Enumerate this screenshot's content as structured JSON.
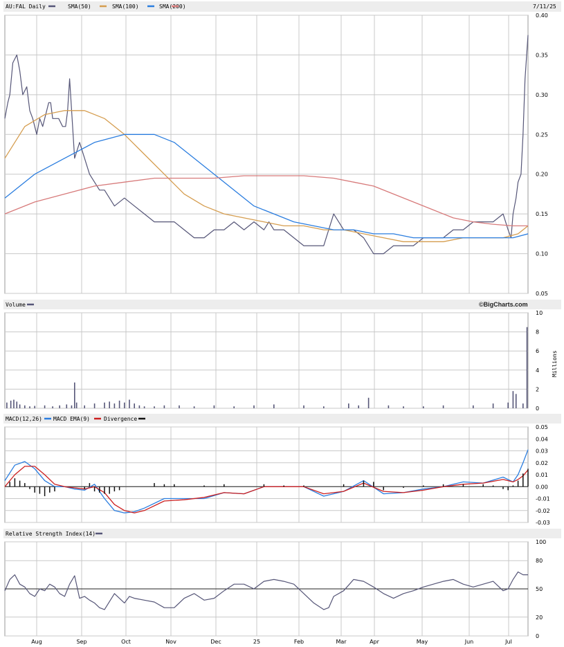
{
  "colors": {
    "price": "#555577",
    "sma50": "#d59d4f",
    "sma100": "#2a7ddf",
    "sma200": "#d77a7a",
    "macd": "#2a7ddf",
    "macd_ema": "#cc1f1f",
    "divergence": "#111111",
    "rsi": "#555577",
    "volume": "#555577",
    "grid": "#c8c8c8",
    "header_bg": "#ededed"
  },
  "chart_data": [
    {
      "type": "line",
      "title": "AU:FAL Daily",
      "date_label": "7/11/25",
      "watermark": "©BigCharts.com",
      "ylim": [
        0.05,
        0.4
      ],
      "y_ticks": [
        "0.40",
        "0.35",
        "0.30",
        "0.25",
        "0.20",
        "0.15",
        "0.10",
        "0.05"
      ],
      "x_tick_labels": [
        "Aug",
        "Sep",
        "Oct",
        "Nov",
        "Dec",
        "25",
        "Feb",
        "Mar",
        "Apr",
        "May",
        "Jun",
        "Jul"
      ],
      "legend": [
        {
          "label": "AU:FAL Daily",
          "color": "#555577"
        },
        {
          "label": "SMA(50)",
          "color": "#d59d4f"
        },
        {
          "label": "SMA(100)",
          "color": "#2a7ddf"
        },
        {
          "label": "SMA(200)",
          "color": "#d77a7a"
        }
      ],
      "series": [
        {
          "key": "price",
          "x": [
            0,
            3,
            5,
            8,
            12,
            15,
            18,
            22,
            25,
            28,
            32,
            35,
            38,
            40,
            42,
            44,
            46,
            48,
            51,
            54,
            58,
            61,
            63,
            65,
            70,
            75,
            80,
            85,
            90,
            95,
            100,
            110,
            120,
            130,
            140,
            150,
            160,
            170,
            180,
            190,
            200,
            210,
            220,
            230,
            240,
            250,
            260,
            265,
            270,
            280,
            290,
            300,
            310,
            320,
            330,
            340,
            350,
            360,
            370,
            380,
            390,
            400,
            405,
            410,
            420,
            430,
            440,
            450,
            460,
            470,
            480,
            490,
            500,
            505,
            508,
            510,
            513,
            515,
            518,
            520,
            522,
            525
          ],
          "values": [
            0.27,
            0.29,
            0.3,
            0.34,
            0.35,
            0.33,
            0.3,
            0.31,
            0.28,
            0.27,
            0.25,
            0.27,
            0.26,
            0.27,
            0.28,
            0.29,
            0.29,
            0.27,
            0.27,
            0.27,
            0.26,
            0.26,
            0.28,
            0.32,
            0.22,
            0.24,
            0.22,
            0.2,
            0.19,
            0.18,
            0.18,
            0.16,
            0.17,
            0.16,
            0.15,
            0.14,
            0.14,
            0.14,
            0.13,
            0.12,
            0.12,
            0.13,
            0.13,
            0.14,
            0.13,
            0.14,
            0.13,
            0.14,
            0.13,
            0.13,
            0.12,
            0.11,
            0.11,
            0.11,
            0.15,
            0.13,
            0.13,
            0.12,
            0.1,
            0.1,
            0.11,
            0.11,
            0.11,
            0.11,
            0.12,
            0.12,
            0.12,
            0.13,
            0.13,
            0.14,
            0.14,
            0.14,
            0.15,
            0.13,
            0.12,
            0.15,
            0.17,
            0.19,
            0.2,
            0.25,
            0.32,
            0.375
          ]
        },
        {
          "key": "sma50",
          "x": [
            0,
            20,
            40,
            60,
            80,
            100,
            120,
            140,
            160,
            180,
            200,
            220,
            240,
            260,
            280,
            300,
            320,
            340,
            360,
            380,
            400,
            420,
            440,
            460,
            480,
            500,
            515,
            525
          ],
          "values": [
            0.22,
            0.26,
            0.275,
            0.28,
            0.28,
            0.27,
            0.25,
            0.225,
            0.2,
            0.175,
            0.16,
            0.15,
            0.145,
            0.14,
            0.135,
            0.135,
            0.13,
            0.13,
            0.125,
            0.12,
            0.115,
            0.115,
            0.115,
            0.12,
            0.12,
            0.12,
            0.125,
            0.135
          ]
        },
        {
          "key": "sma100",
          "x": [
            0,
            30,
            60,
            90,
            120,
            150,
            170,
            190,
            210,
            230,
            250,
            270,
            290,
            310,
            330,
            350,
            370,
            390,
            410,
            430,
            450,
            470,
            490,
            510,
            525
          ],
          "values": [
            0.17,
            0.2,
            0.22,
            0.24,
            0.25,
            0.25,
            0.24,
            0.22,
            0.2,
            0.18,
            0.16,
            0.15,
            0.14,
            0.135,
            0.13,
            0.13,
            0.125,
            0.125,
            0.12,
            0.12,
            0.12,
            0.12,
            0.12,
            0.12,
            0.125
          ]
        },
        {
          "key": "sma200",
          "x": [
            0,
            30,
            60,
            90,
            120,
            150,
            180,
            210,
            240,
            270,
            300,
            330,
            350,
            370,
            390,
            410,
            430,
            450,
            470,
            490,
            510,
            525
          ],
          "values": [
            0.15,
            0.165,
            0.175,
            0.185,
            0.19,
            0.195,
            0.195,
            0.195,
            0.198,
            0.198,
            0.198,
            0.195,
            0.19,
            0.185,
            0.175,
            0.165,
            0.155,
            0.145,
            0.14,
            0.137,
            0.135,
            0.135
          ]
        }
      ]
    },
    {
      "type": "bar",
      "title": "Volume",
      "unit_label": "Millions",
      "ylim": [
        0,
        10
      ],
      "y_ticks": [
        "10",
        "8",
        "6",
        "4",
        "2",
        "0"
      ],
      "series": [
        {
          "key": "volume",
          "x": [
            2,
            6,
            9,
            12,
            15,
            20,
            25,
            30,
            40,
            48,
            55,
            62,
            67,
            70,
            72,
            80,
            90,
            100,
            105,
            110,
            115,
            120,
            125,
            130,
            135,
            140,
            150,
            160,
            175,
            190,
            210,
            230,
            250,
            270,
            300,
            320,
            345,
            355,
            365,
            385,
            400,
            420,
            440,
            470,
            490,
            505,
            510,
            513,
            520,
            524
          ],
          "values": [
            0.6,
            0.8,
            0.9,
            0.7,
            0.4,
            0.3,
            0.2,
            0.25,
            0.3,
            0.2,
            0.3,
            0.4,
            0.3,
            2.7,
            0.6,
            0.3,
            0.5,
            0.6,
            0.7,
            0.5,
            0.8,
            0.6,
            0.9,
            0.5,
            0.3,
            0.2,
            0.2,
            0.3,
            0.3,
            0.2,
            0.3,
            0.2,
            0.3,
            0.4,
            0.3,
            0.2,
            0.5,
            0.3,
            1.1,
            0.3,
            0.2,
            0.2,
            0.3,
            0.3,
            0.5,
            0.6,
            1.8,
            1.5,
            0.5,
            8.5
          ]
        }
      ]
    },
    {
      "type": "line",
      "title": "MACD(12,26)",
      "ylim": [
        -0.03,
        0.05
      ],
      "y_ticks": [
        "0.05",
        "0.04",
        "0.03",
        "0.02",
        "0.01",
        "0.00",
        "-0.01",
        "-0.02",
        "-0.03"
      ],
      "legend": [
        {
          "label": "MACD(12,26)",
          "color": "#555577"
        },
        {
          "label": "MACD EMA(9)",
          "color": "#2a7ddf"
        },
        {
          "label": "Divergence",
          "color": "#cc1f1f"
        }
      ],
      "series": [
        {
          "key": "macd",
          "x": [
            0,
            10,
            20,
            30,
            40,
            50,
            60,
            70,
            80,
            90,
            100,
            110,
            120,
            130,
            140,
            160,
            180,
            200,
            220,
            240,
            260,
            280,
            300,
            320,
            340,
            360,
            380,
            400,
            420,
            440,
            460,
            480,
            500,
            510,
            515,
            520,
            525
          ],
          "values": [
            0.005,
            0.018,
            0.021,
            0.015,
            0.005,
            0.0,
            0.0,
            -0.002,
            -0.003,
            0.002,
            -0.01,
            -0.02,
            -0.022,
            -0.021,
            -0.018,
            -0.01,
            -0.01,
            -0.01,
            -0.005,
            -0.006,
            0.0,
            0.0,
            0.0,
            -0.008,
            -0.004,
            0.005,
            -0.006,
            -0.005,
            -0.002,
            0.0,
            0.004,
            0.003,
            0.008,
            0.004,
            0.01,
            0.02,
            0.031
          ]
        },
        {
          "key": "macd_ema",
          "x": [
            0,
            10,
            20,
            30,
            40,
            50,
            60,
            70,
            80,
            90,
            100,
            110,
            120,
            130,
            140,
            160,
            180,
            200,
            220,
            240,
            260,
            280,
            300,
            320,
            340,
            360,
            380,
            400,
            420,
            440,
            460,
            480,
            500,
            510,
            515,
            520,
            525
          ],
          "values": [
            0.0,
            0.01,
            0.017,
            0.017,
            0.01,
            0.002,
            0.0,
            -0.001,
            -0.002,
            0.0,
            -0.005,
            -0.015,
            -0.02,
            -0.022,
            -0.02,
            -0.012,
            -0.011,
            -0.009,
            -0.005,
            -0.006,
            0.0,
            0.0,
            0.0,
            -0.006,
            -0.004,
            0.003,
            -0.004,
            -0.005,
            -0.003,
            0.0,
            0.002,
            0.003,
            0.006,
            0.004,
            0.006,
            0.009,
            0.014
          ]
        },
        {
          "key": "divergence",
          "x": [
            5,
            10,
            15,
            20,
            25,
            30,
            35,
            40,
            45,
            50,
            80,
            85,
            90,
            95,
            100,
            105,
            110,
            115,
            150,
            160,
            170,
            200,
            220,
            260,
            280,
            300,
            340,
            360,
            370,
            380,
            400,
            420,
            440,
            460,
            480,
            490,
            500,
            505,
            510,
            515,
            520,
            525
          ],
          "values": [
            0.004,
            0.007,
            0.005,
            0.003,
            -0.002,
            -0.005,
            -0.006,
            -0.008,
            -0.005,
            -0.004,
            -0.002,
            0.003,
            -0.004,
            -0.005,
            -0.006,
            -0.006,
            -0.004,
            -0.003,
            0.003,
            0.002,
            0.002,
            0.001,
            0.002,
            0.002,
            0.001,
            0.001,
            0.002,
            0.005,
            0.004,
            -0.003,
            -0.001,
            0.001,
            0.002,
            0.002,
            0.002,
            0.001,
            -0.002,
            -0.003,
            0.001,
            0.005,
            0.011,
            0.015
          ]
        }
      ]
    },
    {
      "type": "line",
      "title": "Relative Strength Index(14)",
      "ylim": [
        0,
        100
      ],
      "y_ticks": [
        "100",
        "80",
        "50",
        "20",
        "0"
      ],
      "reference_line": 50,
      "series": [
        {
          "key": "rsi",
          "x": [
            0,
            5,
            10,
            15,
            20,
            25,
            30,
            35,
            40,
            45,
            50,
            55,
            60,
            65,
            70,
            75,
            80,
            85,
            90,
            95,
            100,
            110,
            120,
            125,
            130,
            140,
            150,
            160,
            170,
            180,
            190,
            200,
            210,
            220,
            230,
            240,
            250,
            260,
            270,
            280,
            290,
            300,
            310,
            320,
            325,
            330,
            340,
            350,
            360,
            370,
            380,
            390,
            400,
            410,
            420,
            430,
            440,
            450,
            460,
            470,
            480,
            490,
            500,
            505,
            510,
            515,
            520,
            525
          ],
          "values": [
            48,
            60,
            65,
            55,
            52,
            45,
            42,
            50,
            48,
            55,
            52,
            45,
            42,
            55,
            64,
            40,
            42,
            38,
            35,
            30,
            28,
            45,
            35,
            42,
            40,
            38,
            36,
            30,
            30,
            40,
            45,
            38,
            40,
            48,
            55,
            55,
            50,
            58,
            60,
            58,
            55,
            45,
            35,
            28,
            30,
            42,
            48,
            60,
            58,
            52,
            45,
            40,
            45,
            48,
            52,
            55,
            58,
            60,
            55,
            52,
            55,
            58,
            48,
            50,
            60,
            68,
            65,
            65
          ]
        }
      ]
    }
  ]
}
